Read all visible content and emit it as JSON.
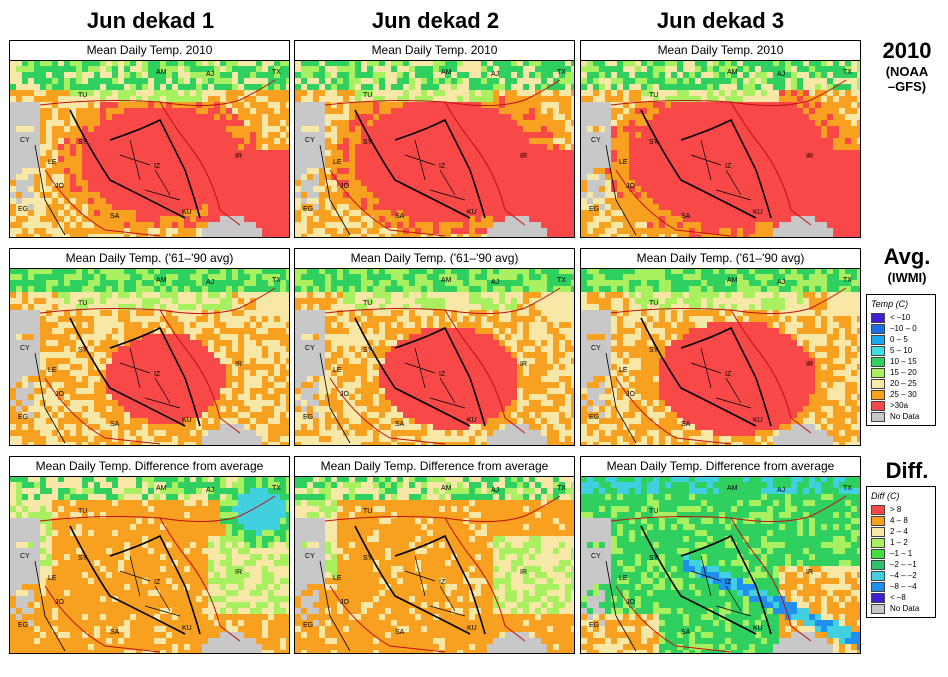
{
  "columns": [
    "Jun dekad 1",
    "Jun dekad 2",
    "Jun dekad 3"
  ],
  "rows": [
    {
      "big": "2010",
      "sub": [
        "(NOAA",
        "–GFS)"
      ],
      "title": "Mean Daily Temp. 2010",
      "kind": "temp2010"
    },
    {
      "big": "Avg.",
      "sub": [
        "(IWMI)"
      ],
      "title": "Mean Daily Temp. ('61–'90 avg)",
      "kind": "tempavg"
    },
    {
      "big": "Diff.",
      "sub": [],
      "title": "Mean Daily Temp. Difference from average",
      "kind": "diff"
    }
  ],
  "map_labels": [
    "AM",
    "AJ",
    "TX",
    "TU",
    "SY",
    "IR",
    "IZ",
    "CY",
    "LE",
    "JO",
    "EG",
    "SA",
    "KU"
  ],
  "temp_legend": {
    "title": "Temp (C)",
    "items": [
      {
        "label": "< –10",
        "color": "#3f1fd0"
      },
      {
        "label": "–10 – 0",
        "color": "#1f6fe0"
      },
      {
        "label": "0 – 5",
        "color": "#20a8ee"
      },
      {
        "label": "5 – 10",
        "color": "#40e0e0"
      },
      {
        "label": "10 – 15",
        "color": "#30d060"
      },
      {
        "label": "15 – 20",
        "color": "#a8f060"
      },
      {
        "label": "20 – 25",
        "color": "#f8e8a8"
      },
      {
        "label": "25 – 30",
        "color": "#f8a020"
      },
      {
        "label": ">30a",
        "color": "#f84848"
      },
      {
        "label": "No Data",
        "color": "#c8c8c8"
      }
    ]
  },
  "diff_legend": {
    "title": "Diff (C)",
    "items": [
      {
        "label": "> 8",
        "color": "#f84848"
      },
      {
        "label": "4 – 8",
        "color": "#f8a020"
      },
      {
        "label": "2 – 4",
        "color": "#f8e8a8"
      },
      {
        "label": "1 – 2",
        "color": "#a8f060"
      },
      {
        "label": "–1 – 1",
        "color": "#40e040"
      },
      {
        "label": "–2 – –1",
        "color": "#30c070"
      },
      {
        "label": "–4 – –2",
        "color": "#40d0e0"
      },
      {
        "label": "–8 – –4",
        "color": "#2090f0"
      },
      {
        "label": "< –8",
        "color": "#3f1fd0"
      },
      {
        "label": "No Data",
        "color": "#c8c8c8"
      }
    ]
  },
  "colors": {
    "red": "#f84848",
    "orange": "#f8a020",
    "tan": "#f8e8a8",
    "lime": "#a8f060",
    "green": "#30d060",
    "cyan": "#40d0e0",
    "blue": "#2090f0",
    "purple": "#3f1fd0",
    "gray": "#c8c8c8",
    "border_red": "#c01010"
  }
}
